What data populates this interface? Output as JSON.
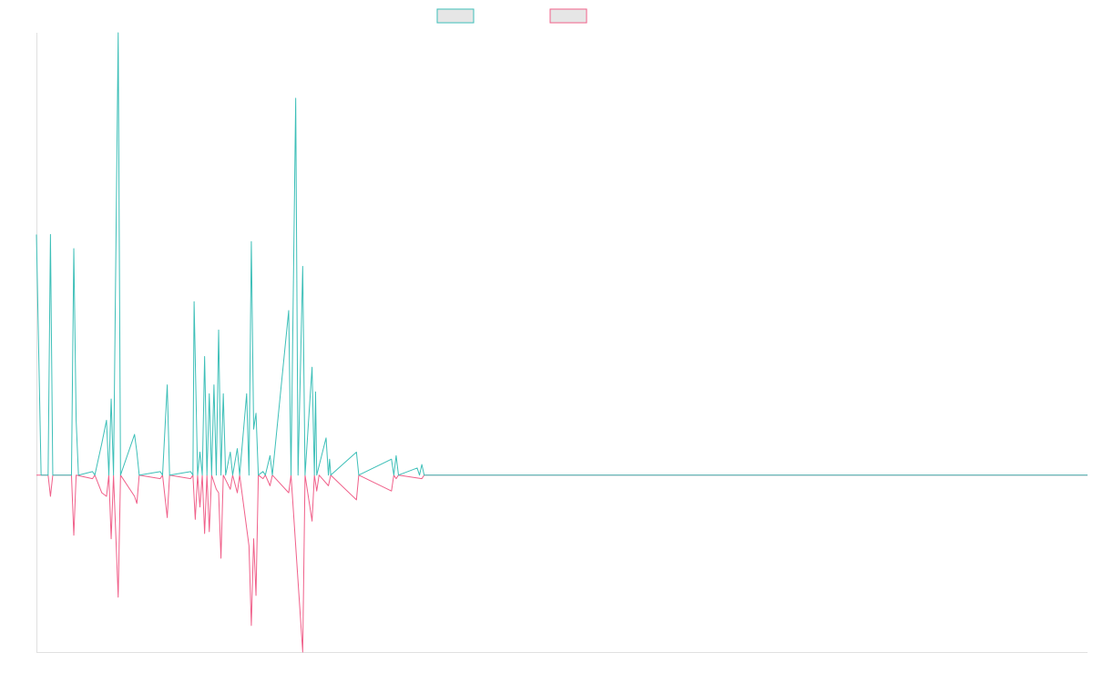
{
  "colors": {
    "teal": "#3dbfb8",
    "pink": "#f0608a",
    "swatch_fill": "#e6e6e6",
    "axis": "#e0e0e0"
  },
  "chart_data": {
    "type": "line",
    "title": "",
    "xlabel": "",
    "ylabel": "",
    "grid": false,
    "legend_position": "top-center",
    "ylim": [
      -1.0,
      2.5
    ],
    "series": [
      {
        "color_key": "teal",
        "points": [
          [
            0,
            1.36
          ],
          [
            2,
            0
          ],
          [
            5,
            0
          ],
          [
            6,
            1.36
          ],
          [
            7,
            0
          ],
          [
            15,
            0
          ],
          [
            16,
            1.28
          ],
          [
            17,
            0.31
          ],
          [
            18,
            0
          ],
          [
            24,
            0.02
          ],
          [
            25,
            0
          ],
          [
            28,
            0.18
          ],
          [
            30,
            0.31
          ],
          [
            31,
            0
          ],
          [
            32,
            0.43
          ],
          [
            33,
            0
          ],
          [
            35,
            2.5
          ],
          [
            36,
            0
          ],
          [
            42,
            0.23
          ],
          [
            43,
            0.13
          ],
          [
            44,
            0
          ],
          [
            53,
            0.02
          ],
          [
            54,
            0
          ],
          [
            56,
            0.51
          ],
          [
            57,
            0
          ],
          [
            66,
            0.02
          ],
          [
            67,
            0
          ],
          [
            67.5,
            0.98
          ],
          [
            69,
            0
          ],
          [
            70,
            0.13
          ],
          [
            71,
            0
          ],
          [
            72,
            0.67
          ],
          [
            73,
            0
          ],
          [
            74,
            0.46
          ],
          [
            75,
            0
          ],
          [
            76,
            0.51
          ],
          [
            77,
            0
          ],
          [
            78,
            0.82
          ],
          [
            79,
            0
          ],
          [
            80,
            0.46
          ],
          [
            81,
            0
          ],
          [
            83,
            0.13
          ],
          [
            84,
            0
          ],
          [
            86,
            0.15
          ],
          [
            87,
            0
          ],
          [
            90,
            0.46
          ],
          [
            91,
            0
          ],
          [
            92,
            1.32
          ],
          [
            93,
            0.26
          ],
          [
            94,
            0.35
          ],
          [
            95,
            0
          ],
          [
            97,
            0.02
          ],
          [
            98,
            0
          ],
          [
            100,
            0.11
          ],
          [
            101,
            0
          ],
          [
            108,
            0.93
          ],
          [
            109,
            0
          ],
          [
            111,
            2.13
          ],
          [
            112,
            0
          ],
          [
            114,
            1.18
          ],
          [
            115,
            0
          ],
          [
            118,
            0.61
          ],
          [
            119,
            0
          ],
          [
            119.5,
            0.47
          ],
          [
            120,
            0
          ],
          [
            124,
            0.21
          ],
          [
            125,
            0
          ],
          [
            125.5,
            0.09
          ],
          [
            126,
            0
          ],
          [
            137,
            0.13
          ],
          [
            138,
            0
          ],
          [
            152,
            0.09
          ],
          [
            153,
            0
          ],
          [
            154,
            0.11
          ],
          [
            155,
            0
          ],
          [
            163,
            0.04
          ],
          [
            164,
            0
          ],
          [
            165,
            0.06
          ],
          [
            166,
            0
          ],
          [
            450,
            0
          ]
        ]
      },
      {
        "color_key": "pink",
        "points": [
          [
            0,
            0
          ],
          [
            5,
            0
          ],
          [
            6,
            -0.12
          ],
          [
            7,
            0
          ],
          [
            15,
            0
          ],
          [
            16,
            -0.34
          ],
          [
            17,
            0
          ],
          [
            24,
            -0.02
          ],
          [
            25,
            0
          ],
          [
            28,
            -0.1
          ],
          [
            30,
            -0.12
          ],
          [
            31,
            0
          ],
          [
            32,
            -0.36
          ],
          [
            33,
            0
          ],
          [
            35,
            -0.69
          ],
          [
            36,
            0
          ],
          [
            42,
            -0.12
          ],
          [
            43,
            -0.16
          ],
          [
            44,
            0
          ],
          [
            53,
            -0.02
          ],
          [
            54,
            0
          ],
          [
            56,
            -0.24
          ],
          [
            57,
            0
          ],
          [
            66,
            -0.02
          ],
          [
            67,
            0
          ],
          [
            68,
            -0.25
          ],
          [
            69,
            0
          ],
          [
            70,
            -0.18
          ],
          [
            71,
            0
          ],
          [
            72,
            -0.33
          ],
          [
            73,
            0
          ],
          [
            74,
            -0.32
          ],
          [
            75,
            0
          ],
          [
            77,
            -0.08
          ],
          [
            78,
            -0.1
          ],
          [
            79,
            -0.47
          ],
          [
            80,
            0
          ],
          [
            83,
            -0.08
          ],
          [
            84,
            0
          ],
          [
            86,
            -0.1
          ],
          [
            87,
            0
          ],
          [
            91,
            -0.4
          ],
          [
            92,
            -0.85
          ],
          [
            93,
            -0.36
          ],
          [
            94,
            -0.68
          ],
          [
            95,
            0
          ],
          [
            97,
            -0.02
          ],
          [
            98,
            0
          ],
          [
            100,
            -0.06
          ],
          [
            101,
            0
          ],
          [
            108,
            -0.1
          ],
          [
            109,
            0
          ],
          [
            114,
            -1.0
          ],
          [
            115,
            0
          ],
          [
            118,
            -0.26
          ],
          [
            119,
            0
          ],
          [
            120,
            -0.09
          ],
          [
            121,
            0
          ],
          [
            125,
            -0.06
          ],
          [
            126,
            0
          ],
          [
            137,
            -0.14
          ],
          [
            138,
            0
          ],
          [
            152,
            -0.09
          ],
          [
            153,
            0
          ],
          [
            154,
            -0.02
          ],
          [
            155,
            0
          ],
          [
            165,
            -0.02
          ],
          [
            166,
            0
          ],
          [
            450,
            0
          ]
        ]
      }
    ]
  }
}
